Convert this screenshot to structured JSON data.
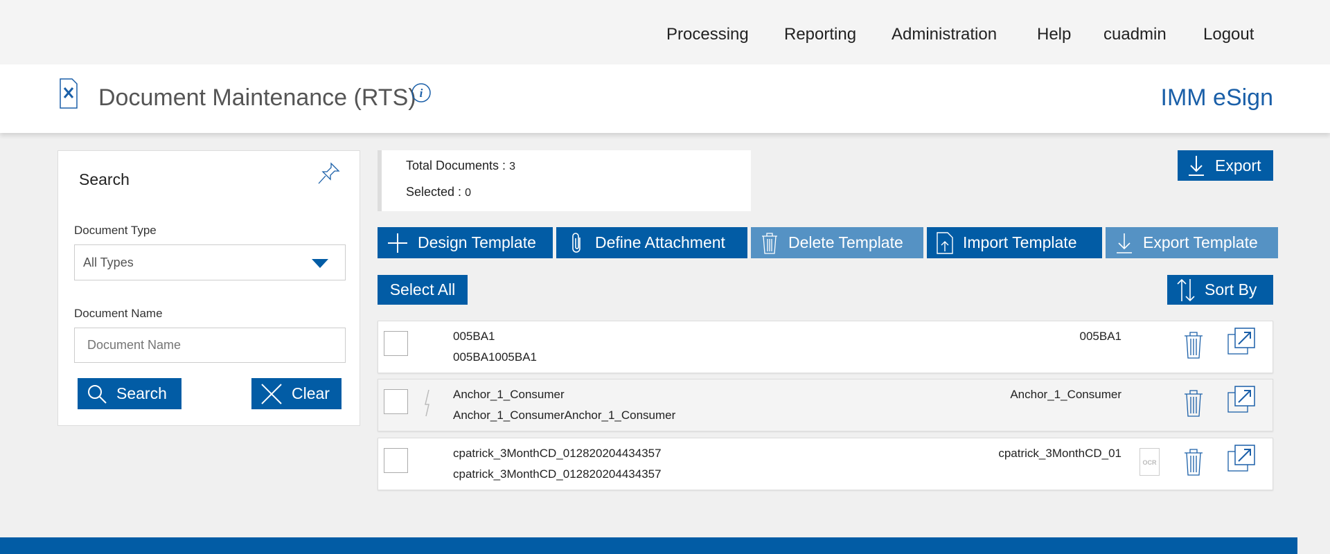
{
  "nav": {
    "items": [
      "Processing",
      "Reporting",
      "Administration",
      "Help",
      "cuadmin",
      "Logout"
    ]
  },
  "header": {
    "title": "Document Maintenance (RTS)",
    "brand": "IMM eSign",
    "icon": "document-tools-icon",
    "info_icon": "info-icon"
  },
  "search": {
    "title": "Search",
    "pin_icon": "pin-icon",
    "doc_type_label": "Document Type",
    "doc_type_value": "All Types",
    "doc_name_label": "Document Name",
    "doc_name_placeholder": "Document Name",
    "search_button": "Search",
    "clear_button": "Clear"
  },
  "stats": {
    "total_label": "Total Documents :",
    "total_value": "3",
    "selected_label": "Selected :",
    "selected_value": "0"
  },
  "toolbar": {
    "export": "Export",
    "design": "Design Template",
    "define": "Define Attachment",
    "delete": "Delete Template",
    "import": "Import Template",
    "export_template": "Export Template",
    "select_all": "Select All",
    "sort_by": "Sort By"
  },
  "documents": [
    {
      "name": "005BA1",
      "description": "005BA1005BA1",
      "right_label": "005BA1",
      "anchor": false,
      "ocr": false
    },
    {
      "name": "Anchor_1_Consumer",
      "description": "Anchor_1_ConsumerAnchor_1_Consumer",
      "right_label": "Anchor_1_Consumer",
      "anchor": true,
      "ocr": false
    },
    {
      "name": "cpatrick_3MonthCD_012820204434357",
      "description": "cpatrick_3MonthCD_012820204434357",
      "right_label": "cpatrick_3MonthCD_01",
      "anchor": false,
      "ocr": true
    }
  ],
  "ocr_label": "OCR",
  "colors": {
    "primary": "#025ca5",
    "disabled": "#5592c4",
    "background": "#f0f0f0"
  }
}
